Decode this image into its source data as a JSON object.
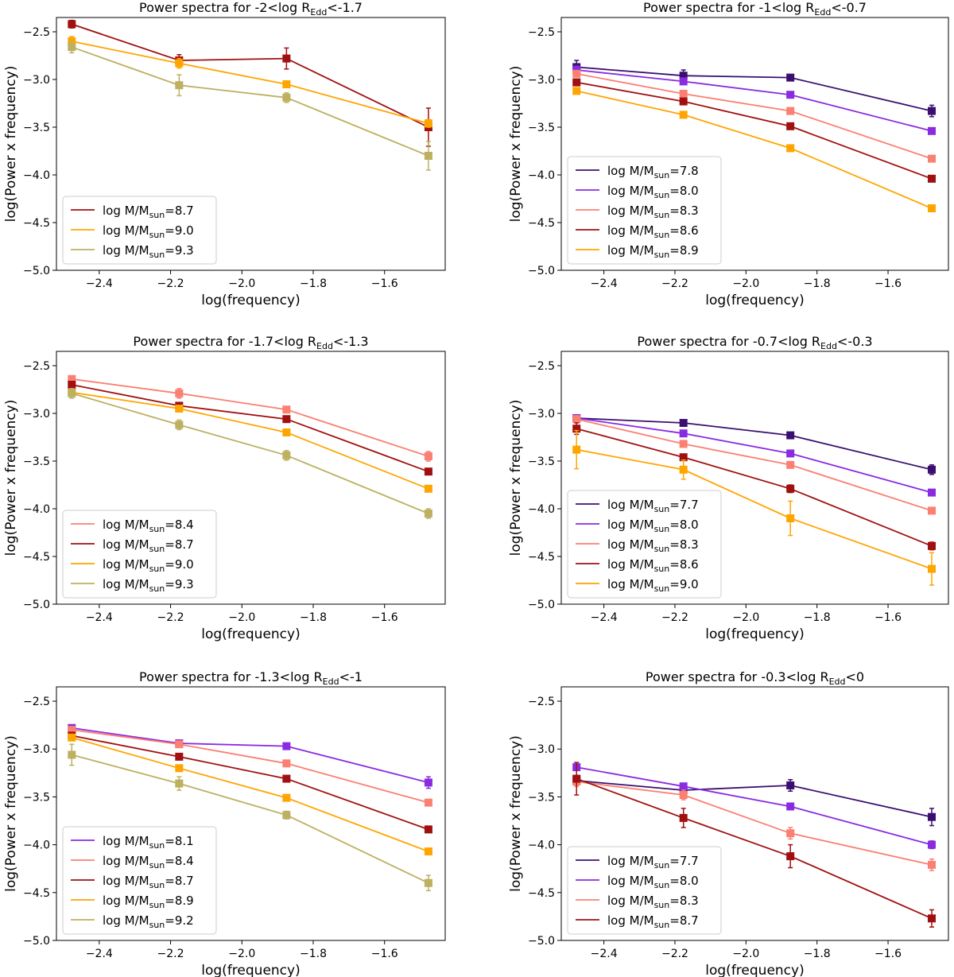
{
  "figure": {
    "colors": {
      "7.7": "#3b0f70",
      "7.8": "#3b0f70",
      "8.0": "#8a2be2",
      "8.1": "#8a2be2",
      "8.3": "#fa8072",
      "8.4": "#fa8072",
      "8.6": "#a01010",
      "8.7": "#a01010",
      "8.9": "#ffa500",
      "9.0": "#ffa500",
      "9.2": "#bdb061",
      "9.3": "#bdb061"
    }
  },
  "chart_data": [
    {
      "type": "line",
      "title": "Power spectra for -2<log R",
      "title_sub": "Edd",
      "title_tail": "<-1.7",
      "xlabel": "log(frequency)",
      "ylabel": "log(Power x frequency)",
      "xlim": [
        -2.52,
        -1.43
      ],
      "ylim": [
        -5.0,
        -2.35
      ],
      "xticks": [
        -2.4,
        -2.2,
        -2.0,
        -1.8,
        -1.6
      ],
      "xtick_labels": [
        "−2.4",
        "−2.2",
        "−2.0",
        "−1.8",
        "−1.6"
      ],
      "yticks": [
        -2.5,
        -3.0,
        -3.5,
        -4.0,
        -4.5,
        -5.0
      ],
      "ytick_labels": [
        "−2.5",
        "−3.0",
        "−3.5",
        "−4.0",
        "−4.5",
        "−5.0"
      ],
      "x": [
        -2.477,
        -2.176,
        -1.875,
        -1.477
      ],
      "legend_loc": "lower-left",
      "series": [
        {
          "name": "8.7",
          "label": "log M/M",
          "label_sub": "sun",
          "label_tail": "=8.7",
          "values": [
            -2.42,
            -2.8,
            -2.78,
            -3.5
          ],
          "errors": [
            0.04,
            0.06,
            0.11,
            0.2
          ]
        },
        {
          "name": "9.0",
          "label": "log M/M",
          "label_sub": "sun",
          "label_tail": "=9.0",
          "values": [
            -2.6,
            -2.83,
            -3.05,
            -3.46
          ],
          "errors": [
            0.05,
            0.05,
            0.03,
            0.04
          ]
        },
        {
          "name": "9.3",
          "label": "log M/M",
          "label_sub": "sun",
          "label_tail": "=9.3",
          "values": [
            -2.66,
            -3.06,
            -3.19,
            -3.8
          ],
          "errors": [
            0.06,
            0.11,
            0.05,
            0.15
          ]
        }
      ]
    },
    {
      "type": "line",
      "title": "Power spectra for -1<log R",
      "title_sub": "Edd",
      "title_tail": "<-0.7",
      "xlabel": "log(frequency)",
      "ylabel": "log(Power x frequency)",
      "xlim": [
        -2.52,
        -1.43
      ],
      "ylim": [
        -5.0,
        -2.35
      ],
      "xticks": [
        -2.4,
        -2.2,
        -2.0,
        -1.8,
        -1.6
      ],
      "xtick_labels": [
        "−2.4",
        "−2.2",
        "−2.0",
        "−1.8",
        "−1.6"
      ],
      "yticks": [
        -2.5,
        -3.0,
        -3.5,
        -4.0,
        -4.5,
        -5.0
      ],
      "ytick_labels": [
        "−2.5",
        "−3.0",
        "−3.5",
        "−4.0",
        "−4.5",
        "−5.0"
      ],
      "x": [
        -2.477,
        -2.176,
        -1.875,
        -1.477
      ],
      "legend_loc": "lower-left",
      "series": [
        {
          "name": "7.8",
          "label": "log M/M",
          "label_sub": "sun",
          "label_tail": "=7.8",
          "values": [
            -2.87,
            -2.96,
            -2.98,
            -3.33
          ],
          "errors": [
            0.07,
            0.06,
            0.02,
            0.06
          ]
        },
        {
          "name": "8.0",
          "label": "log M/M",
          "label_sub": "sun",
          "label_tail": "=8.0",
          "values": [
            -2.9,
            -3.02,
            -3.16,
            -3.54
          ],
          "errors": [
            0.04,
            0.03,
            0.02,
            0.03
          ]
        },
        {
          "name": "8.3",
          "label": "log M/M",
          "label_sub": "sun",
          "label_tail": "=8.3",
          "values": [
            -2.94,
            -3.15,
            -3.33,
            -3.83
          ],
          "errors": [
            0.03,
            0.02,
            0.02,
            0.02
          ]
        },
        {
          "name": "8.6",
          "label": "log M/M",
          "label_sub": "sun",
          "label_tail": "=8.6",
          "values": [
            -3.03,
            -3.23,
            -3.49,
            -4.04
          ],
          "errors": [
            0.03,
            0.02,
            0.02,
            0.02
          ]
        },
        {
          "name": "8.9",
          "label": "log M/M",
          "label_sub": "sun",
          "label_tail": "=8.9",
          "values": [
            -3.12,
            -3.37,
            -3.72,
            -4.35
          ],
          "errors": [
            0.03,
            0.02,
            0.03,
            0.02
          ]
        }
      ]
    },
    {
      "type": "line",
      "title": "Power spectra for -1.7<log R",
      "title_sub": "Edd",
      "title_tail": "<-1.3",
      "xlabel": "log(frequency)",
      "ylabel": "log(Power x frequency)",
      "xlim": [
        -2.52,
        -1.43
      ],
      "ylim": [
        -5.0,
        -2.35
      ],
      "xticks": [
        -2.4,
        -2.2,
        -2.0,
        -1.8,
        -1.6
      ],
      "xtick_labels": [
        "−2.4",
        "−2.2",
        "−2.0",
        "−1.8",
        "−1.6"
      ],
      "yticks": [
        -2.5,
        -3.0,
        -3.5,
        -4.0,
        -4.5,
        -5.0
      ],
      "ytick_labels": [
        "−2.5",
        "−3.0",
        "−3.5",
        "−4.0",
        "−4.5",
        "−5.0"
      ],
      "x": [
        -2.477,
        -2.176,
        -1.875,
        -1.477
      ],
      "legend_loc": "lower-left",
      "series": [
        {
          "name": "8.4",
          "label": "log M/M",
          "label_sub": "sun",
          "label_tail": "=8.4",
          "values": [
            -2.64,
            -2.79,
            -2.96,
            -3.45
          ],
          "errors": [
            0.03,
            0.05,
            0.02,
            0.05
          ]
        },
        {
          "name": "8.7",
          "label": "log M/M",
          "label_sub": "sun",
          "label_tail": "=8.7",
          "values": [
            -2.7,
            -2.92,
            -3.06,
            -3.61
          ],
          "errors": [
            0.03,
            0.02,
            0.02,
            0.02
          ]
        },
        {
          "name": "9.0",
          "label": "log M/M",
          "label_sub": "sun",
          "label_tail": "=9.0",
          "values": [
            -2.78,
            -2.95,
            -3.2,
            -3.79
          ],
          "errors": [
            0.03,
            0.02,
            0.02,
            0.02
          ]
        },
        {
          "name": "9.3",
          "label": "log M/M",
          "label_sub": "sun",
          "label_tail": "=9.3",
          "values": [
            -2.79,
            -3.12,
            -3.44,
            -4.05
          ],
          "errors": [
            0.05,
            0.05,
            0.05,
            0.05
          ]
        }
      ]
    },
    {
      "type": "line",
      "title": "Power spectra for -0.7<log R",
      "title_sub": "Edd",
      "title_tail": "<-0.3",
      "xlabel": "log(frequency)",
      "ylabel": "log(Power x frequency)",
      "xlim": [
        -2.52,
        -1.43
      ],
      "ylim": [
        -5.0,
        -2.35
      ],
      "xticks": [
        -2.4,
        -2.2,
        -2.0,
        -1.8,
        -1.6
      ],
      "xtick_labels": [
        "−2.4",
        "−2.2",
        "−2.0",
        "−1.8",
        "−1.6"
      ],
      "yticks": [
        -2.5,
        -3.0,
        -3.5,
        -4.0,
        -4.5,
        -5.0
      ],
      "ytick_labels": [
        "−2.5",
        "−3.0",
        "−3.5",
        "−4.0",
        "−4.5",
        "−5.0"
      ],
      "x": [
        -2.477,
        -2.176,
        -1.875,
        -1.477
      ],
      "legend_loc": "lower-left",
      "series": [
        {
          "name": "7.7",
          "label": "log M/M",
          "label_sub": "sun",
          "label_tail": "=7.7",
          "values": [
            -3.05,
            -3.1,
            -3.23,
            -3.59
          ],
          "errors": [
            0.02,
            0.02,
            0.02,
            0.05
          ]
        },
        {
          "name": "8.0",
          "label": "log M/M",
          "label_sub": "sun",
          "label_tail": "=8.0",
          "values": [
            -3.05,
            -3.21,
            -3.42,
            -3.83
          ],
          "errors": [
            0.03,
            0.02,
            0.02,
            0.02
          ]
        },
        {
          "name": "8.3",
          "label": "log M/M",
          "label_sub": "sun",
          "label_tail": "=8.3",
          "values": [
            -3.06,
            -3.32,
            -3.54,
            -4.02
          ],
          "errors": [
            0.03,
            0.02,
            0.02,
            0.02
          ]
        },
        {
          "name": "8.6",
          "label": "log M/M",
          "label_sub": "sun",
          "label_tail": "=8.6",
          "values": [
            -3.16,
            -3.46,
            -3.79,
            -4.39
          ],
          "errors": [
            0.06,
            0.03,
            0.04,
            0.04
          ]
        },
        {
          "name": "9.0",
          "label": "log M/M",
          "label_sub": "sun",
          "label_tail": "=9.0",
          "values": [
            -3.38,
            -3.59,
            -4.1,
            -4.63
          ],
          "errors": [
            0.2,
            0.1,
            0.18,
            0.17
          ]
        }
      ]
    },
    {
      "type": "line",
      "title": "Power spectra for -1.3<log R",
      "title_sub": "Edd",
      "title_tail": "<-1",
      "xlabel": "log(frequency)",
      "ylabel": "log(Power x frequency)",
      "xlim": [
        -2.52,
        -1.43
      ],
      "ylim": [
        -5.0,
        -2.35
      ],
      "xticks": [
        -2.4,
        -2.2,
        -2.0,
        -1.8,
        -1.6
      ],
      "xtick_labels": [
        "−2.4",
        "−2.2",
        "−2.0",
        "−1.8",
        "−1.6"
      ],
      "yticks": [
        -2.5,
        -3.0,
        -3.5,
        -4.0,
        -4.5,
        -5.0
      ],
      "ytick_labels": [
        "−2.5",
        "−3.0",
        "−3.5",
        "−4.0",
        "−4.5",
        "−5.0"
      ],
      "x": [
        -2.477,
        -2.176,
        -1.875,
        -1.477
      ],
      "legend_loc": "lower-left",
      "series": [
        {
          "name": "8.1",
          "label": "log M/M",
          "label_sub": "sun",
          "label_tail": "=8.1",
          "values": [
            -2.78,
            -2.94,
            -2.97,
            -3.35
          ],
          "errors": [
            0.03,
            0.03,
            0.02,
            0.06
          ]
        },
        {
          "name": "8.4",
          "label": "log M/M",
          "label_sub": "sun",
          "label_tail": "=8.4",
          "values": [
            -2.8,
            -2.95,
            -3.15,
            -3.56
          ],
          "errors": [
            0.03,
            0.02,
            0.02,
            0.02
          ]
        },
        {
          "name": "8.7",
          "label": "log M/M",
          "label_sub": "sun",
          "label_tail": "=8.7",
          "values": [
            -2.86,
            -3.08,
            -3.31,
            -3.84
          ],
          "errors": [
            0.02,
            0.02,
            0.02,
            0.02
          ]
        },
        {
          "name": "8.9",
          "label": "log M/M",
          "label_sub": "sun",
          "label_tail": "=8.9",
          "values": [
            -2.88,
            -3.2,
            -3.51,
            -4.07
          ],
          "errors": [
            0.03,
            0.02,
            0.02,
            0.02
          ]
        },
        {
          "name": "9.2",
          "label": "log M/M",
          "label_sub": "sun",
          "label_tail": "=9.2",
          "values": [
            -3.06,
            -3.36,
            -3.69,
            -4.4
          ],
          "errors": [
            0.11,
            0.07,
            0.04,
            0.08
          ]
        }
      ]
    },
    {
      "type": "line",
      "title": "Power spectra for -0.3<log R",
      "title_sub": "Edd",
      "title_tail": "<0",
      "xlabel": "log(frequency)",
      "ylabel": "log(Power x frequency)",
      "xlim": [
        -2.52,
        -1.43
      ],
      "ylim": [
        -5.0,
        -2.35
      ],
      "xticks": [
        -2.4,
        -2.2,
        -2.0,
        -1.8,
        -1.6
      ],
      "xtick_labels": [
        "−2.4",
        "−2.2",
        "−2.0",
        "−1.8",
        "−1.6"
      ],
      "yticks": [
        -2.5,
        -3.0,
        -3.5,
        -4.0,
        -4.5,
        -5.0
      ],
      "ytick_labels": [
        "−2.5",
        "−3.0",
        "−3.5",
        "−4.0",
        "−4.5",
        "−5.0"
      ],
      "x": [
        -2.477,
        -2.176,
        -1.875,
        -1.477
      ],
      "legend_loc": "lower-left",
      "series": [
        {
          "name": "7.7",
          "label": "log M/M",
          "label_sub": "sun",
          "label_tail": "=7.7",
          "values": [
            -3.33,
            -3.43,
            -3.38,
            -3.71
          ],
          "errors": [
            0.03,
            0.03,
            0.06,
            0.09
          ]
        },
        {
          "name": "8.0",
          "label": "log M/M",
          "label_sub": "sun",
          "label_tail": "=8.0",
          "values": [
            -3.19,
            -3.39,
            -3.6,
            -4.0
          ],
          "errors": [
            0.03,
            0.03,
            0.03,
            0.04
          ]
        },
        {
          "name": "8.3",
          "label": "log M/M",
          "label_sub": "sun",
          "label_tail": "=8.3",
          "values": [
            -3.34,
            -3.48,
            -3.88,
            -4.21
          ],
          "errors": [
            0.05,
            0.05,
            0.06,
            0.06
          ]
        },
        {
          "name": "8.7",
          "label": "log M/M",
          "label_sub": "sun",
          "label_tail": "=8.7",
          "values": [
            -3.31,
            -3.72,
            -4.12,
            -4.77
          ],
          "errors": [
            0.17,
            0.1,
            0.12,
            0.09
          ]
        }
      ]
    }
  ]
}
